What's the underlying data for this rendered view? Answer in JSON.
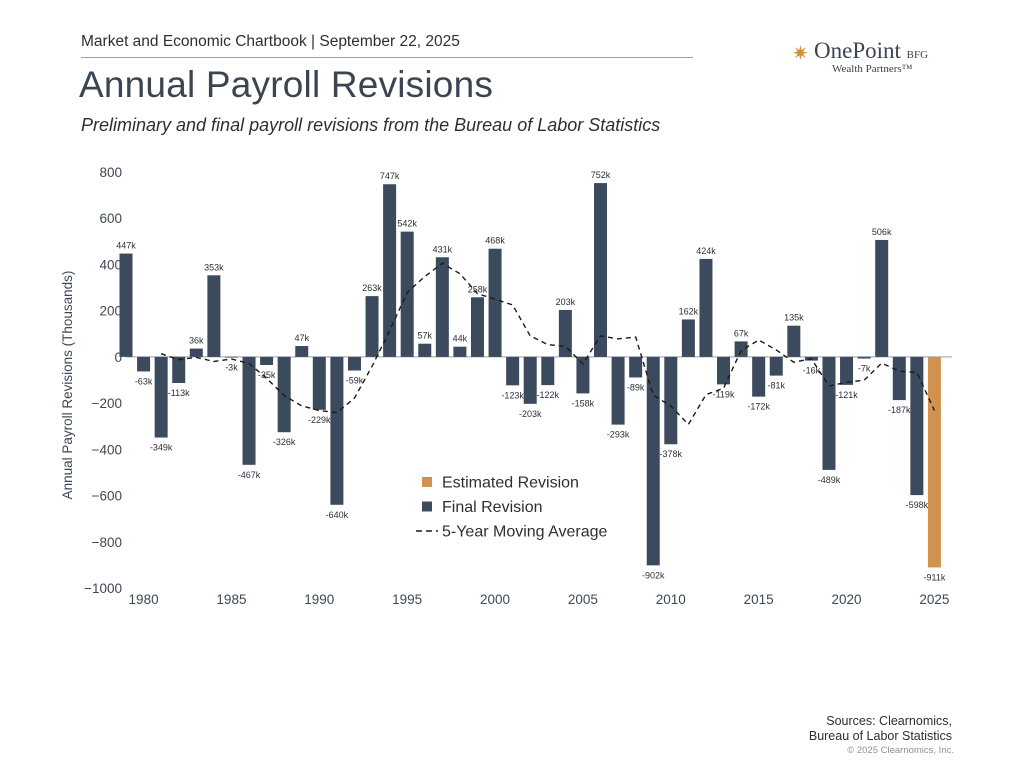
{
  "header": {
    "chartbook_label": "Market and Economic Chartbook | September 22, 2025"
  },
  "logo": {
    "icon": "star-burst-icon",
    "name": "OnePoint",
    "suffix": "BFG",
    "tagline": "Wealth Partners™"
  },
  "title": "Annual Payroll Revisions",
  "subtitle": "Preliminary and final payroll revisions from the Bureau of Labor Statistics",
  "chart_data": {
    "type": "bar",
    "ylabel": "Annual Payroll Revisions (Thousands)",
    "ylim": [
      -1000,
      800
    ],
    "yticks": [
      800,
      600,
      400,
      200,
      0,
      -200,
      -400,
      -600,
      -800,
      -1000
    ],
    "ytick_labels": [
      "800",
      "600",
      "400",
      "200",
      "0",
      "−200",
      "−400",
      "−600",
      "−800",
      "−1000"
    ],
    "xlim": [
      1979,
      2026
    ],
    "xticks": [
      1980,
      1985,
      1990,
      1995,
      2000,
      2005,
      2010,
      2015,
      2020,
      2025
    ],
    "grid": false,
    "legend_position": "center",
    "colors": {
      "final": "#3b4a5c",
      "estimated": "#d2914e",
      "moving_average": "#1a1a1a"
    },
    "series": [
      {
        "name": "Final Revision",
        "years": [
          1979,
          1980,
          1981,
          1982,
          1983,
          1984,
          1985,
          1986,
          1987,
          1988,
          1989,
          1990,
          1991,
          1992,
          1993,
          1994,
          1995,
          1996,
          1997,
          1998,
          1999,
          2000,
          2001,
          2002,
          2003,
          2004,
          2005,
          2006,
          2007,
          2008,
          2009,
          2010,
          2011,
          2012,
          2013,
          2014,
          2015,
          2016,
          2017,
          2018,
          2019,
          2020,
          2021,
          2022,
          2023,
          2024
        ],
        "values": [
          447,
          -63,
          -349,
          -113,
          36,
          353,
          -3,
          -467,
          -35,
          -326,
          47,
          -229,
          -640,
          -59,
          263,
          747,
          542,
          57,
          431,
          44,
          258,
          468,
          -123,
          -203,
          -122,
          203,
          -158,
          752,
          -293,
          -89,
          -902,
          -378,
          162,
          424,
          -119,
          67,
          -172,
          -81,
          135,
          -16,
          -489,
          -121,
          -7,
          506,
          -187,
          -598
        ],
        "labels": [
          "447k",
          "-63k",
          "-349k",
          "-113k",
          "36k",
          "353k",
          "-3k",
          "-467k",
          "-35k",
          "-326k",
          "47k",
          "-229k",
          "-640k",
          "-59k",
          "263k",
          "747k",
          "542k",
          "57k",
          "431k",
          "44k",
          "258k",
          "468k",
          "-123k",
          "-203k",
          "-122k",
          "203k",
          "-158k",
          "752k",
          "-293k",
          "-89k",
          "-902k",
          "-378k",
          "162k",
          "424k",
          "-119k",
          "67k",
          "-172k",
          "-81k",
          "135k",
          "-16k",
          "-489k",
          "-121k",
          "-7k",
          "506k",
          "-187k",
          "-598k"
        ]
      },
      {
        "name": "Estimated Revision",
        "years": [
          2025
        ],
        "values": [
          -911
        ],
        "labels": [
          "-911k"
        ]
      },
      {
        "name": "5-Year Moving Average",
        "style": "dashed-line",
        "years": [
          1981,
          1982,
          1983,
          1984,
          1985,
          1986,
          1987,
          1988,
          1989,
          1990,
          1991,
          1992,
          1993,
          1994,
          1995,
          1996,
          1997,
          1998,
          1999,
          2000,
          2001,
          2002,
          2003,
          2004,
          2005,
          2006,
          2007,
          2008,
          2009,
          2010,
          2011,
          2012,
          2013,
          2014,
          2015,
          2016,
          2017,
          2018,
          2019,
          2020,
          2021,
          2022,
          2023,
          2024,
          2025
        ],
        "values": [
          14,
          -12,
          -2,
          -20,
          -9,
          -28,
          -93,
          -167,
          -212,
          -232,
          -241,
          -178,
          -41,
          113,
          279,
          348,
          405,
          360,
          274,
          249,
          225,
          91,
          53,
          46,
          -30,
          91,
          78,
          86,
          -166,
          -212,
          -292,
          -163,
          -136,
          27,
          73,
          30,
          -23,
          -8,
          -126,
          -110,
          -101,
          -27,
          -62,
          -67,
          -232
        ]
      }
    ],
    "legend": [
      {
        "name": "Estimated Revision",
        "marker": "square"
      },
      {
        "name": "Final Revision",
        "marker": "square"
      },
      {
        "name": "5-Year Moving Average",
        "marker": "dashed-line"
      }
    ]
  },
  "footer": {
    "sources_line1": "Sources: Clearnomics,",
    "sources_line2": "Bureau of Labor Statistics",
    "copyright": "© 2025 Clearnomics, Inc."
  }
}
